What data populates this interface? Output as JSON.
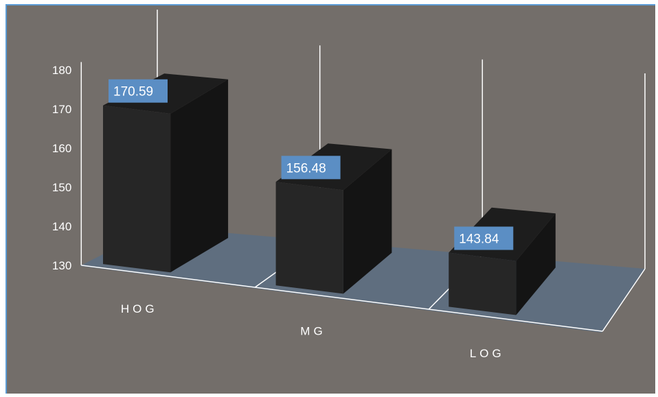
{
  "chart_data": {
    "type": "bar",
    "style": "3d-column",
    "categories": [
      "HOG",
      "MG",
      "LOG"
    ],
    "values": [
      170.59,
      156.48,
      143.84
    ],
    "data_labels": [
      "170.59",
      "156.48",
      "143.84"
    ],
    "ylim": [
      130,
      180
    ],
    "yticks": [
      "130",
      "140",
      "150",
      "160",
      "170",
      "180"
    ],
    "grid": true,
    "legend": "none",
    "colors": {
      "background": "#736e6a",
      "floor": "#5f6e7f",
      "bar_front": "#262626",
      "bar_side": "#141414",
      "bar_top": "#1d1d1d",
      "gridline": "#ffffff",
      "data_label_bg": "#5b8ec4",
      "frame_border": "#5b9bd5"
    }
  }
}
